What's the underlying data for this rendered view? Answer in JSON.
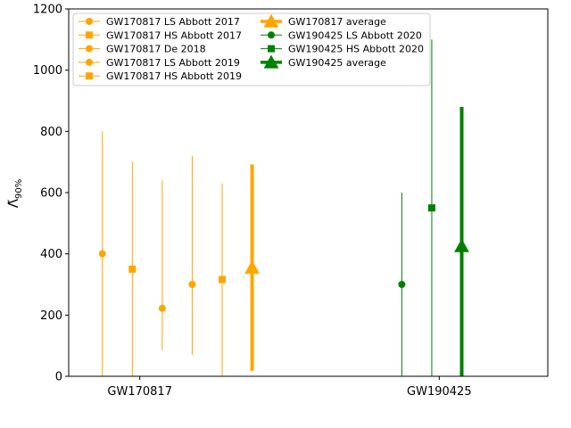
{
  "chart_data": {
    "type": "scatter",
    "title": "",
    "xlabel": "",
    "ylabel": "Λ̃",
    "ylabel_subscript": "90%",
    "ylim": [
      0,
      1200
    ],
    "yticks": [
      0,
      200,
      400,
      600,
      800,
      1000,
      1200
    ],
    "categories": [
      "GW170817",
      "GW190425"
    ],
    "grid": false,
    "legend_position": "top-left",
    "legend_columns": 2,
    "colors": {
      "GW170817": "#ffa500",
      "GW190425": "#008000"
    },
    "series": [
      {
        "name": "GW170817 LS Abbott 2017",
        "event": "GW170817",
        "x": -0.375,
        "marker": "circle",
        "value": 400,
        "low": 0,
        "high": 800,
        "kind": "individual"
      },
      {
        "name": "GW170817 HS Abbott 2017",
        "event": "GW170817",
        "x": -0.175,
        "marker": "square",
        "value": 350,
        "low": 0,
        "high": 700,
        "kind": "individual"
      },
      {
        "name": "GW170817 De 2018",
        "event": "GW170817",
        "x": 0.025,
        "marker": "circle",
        "value": 222,
        "low": 85,
        "high": 640,
        "kind": "individual"
      },
      {
        "name": "GW170817 LS Abbott 2019",
        "event": "GW170817",
        "x": 0.225,
        "marker": "circle",
        "value": 300,
        "low": 70,
        "high": 720,
        "kind": "individual"
      },
      {
        "name": "GW170817 HS Abbott 2019",
        "event": "GW170817",
        "x": 0.425,
        "marker": "square",
        "value": 316,
        "low": 0,
        "high": 630,
        "kind": "individual"
      },
      {
        "name": "GW170817 average",
        "event": "GW170817",
        "x": 0.625,
        "marker": "triangle",
        "value": 355,
        "low": 18,
        "high": 692,
        "kind": "average"
      },
      {
        "name": "GW190425 LS Abbott 2020",
        "event": "GW190425",
        "x": 1.625,
        "marker": "circle",
        "value": 300,
        "low": 0,
        "high": 600,
        "kind": "individual"
      },
      {
        "name": "GW190425 HS Abbott 2020",
        "event": "GW190425",
        "x": 1.825,
        "marker": "square",
        "value": 550,
        "low": 0,
        "high": 1100,
        "kind": "individual"
      },
      {
        "name": "GW190425 average",
        "event": "GW190425",
        "x": 2.025,
        "marker": "triangle",
        "value": 425,
        "low": 0,
        "high": 880,
        "kind": "average"
      }
    ],
    "xticks": [
      {
        "label": "GW170817",
        "x": -0.125
      },
      {
        "label": "GW190425",
        "x": 1.875
      }
    ],
    "xlim": [
      -0.6,
      2.6
    ]
  }
}
